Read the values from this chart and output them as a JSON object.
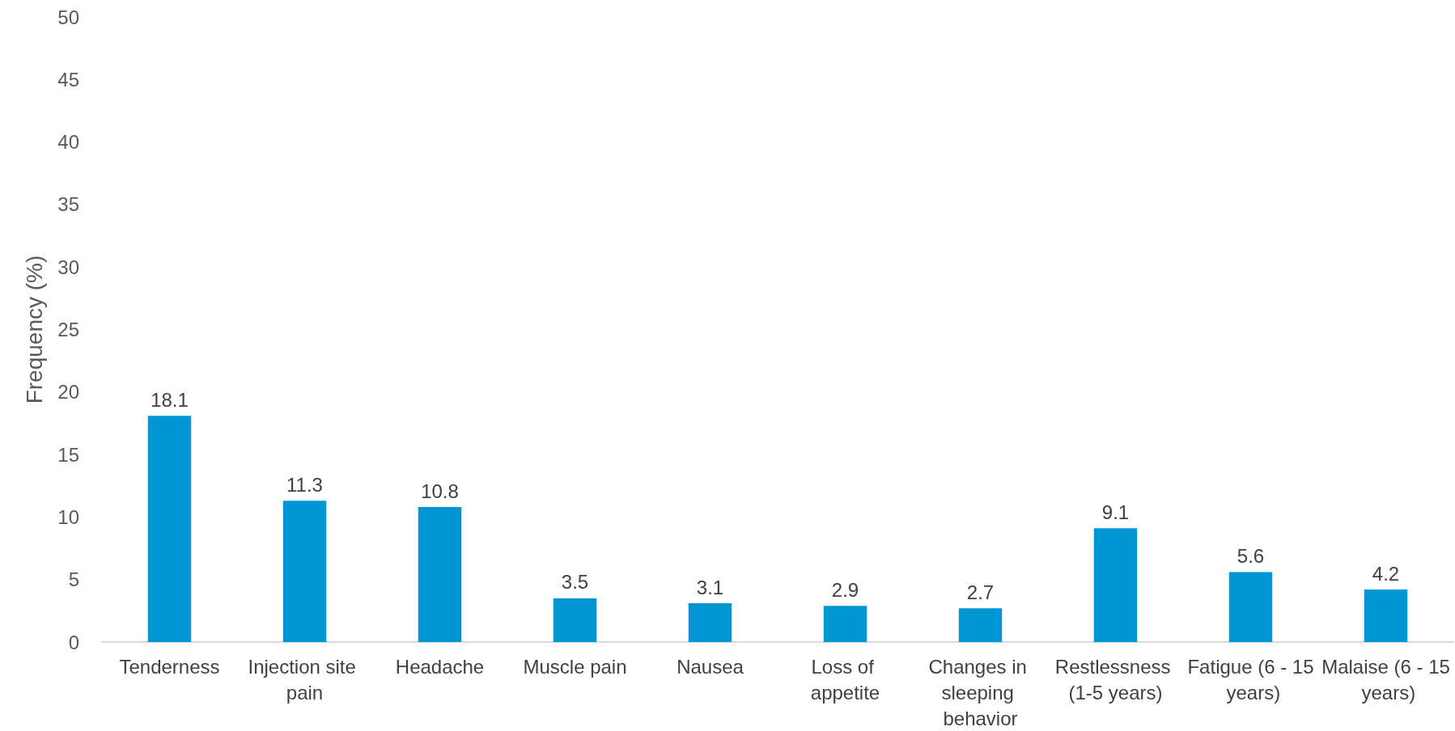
{
  "chart_data": {
    "type": "bar",
    "ylabel": "Frequency (%)",
    "categories": [
      "Tenderness",
      "Injection site pain",
      "Headache",
      "Muscle pain",
      "Nausea",
      "Loss of appetite",
      "Changes in sleeping behavior",
      "Restlessness (1-5 years)",
      "Fatigue (6 - 15 years)",
      "Malaise (6 - 15 years)"
    ],
    "values": [
      18.1,
      11.3,
      10.8,
      3.5,
      3.1,
      2.9,
      2.7,
      9.1,
      5.6,
      4.2
    ],
    "color": "#0095d3",
    "ylim": [
      0,
      50
    ],
    "yticks": [
      0,
      5,
      10,
      15,
      20,
      25,
      30,
      35,
      40,
      45,
      50
    ],
    "grid": false,
    "data_labels": true
  }
}
